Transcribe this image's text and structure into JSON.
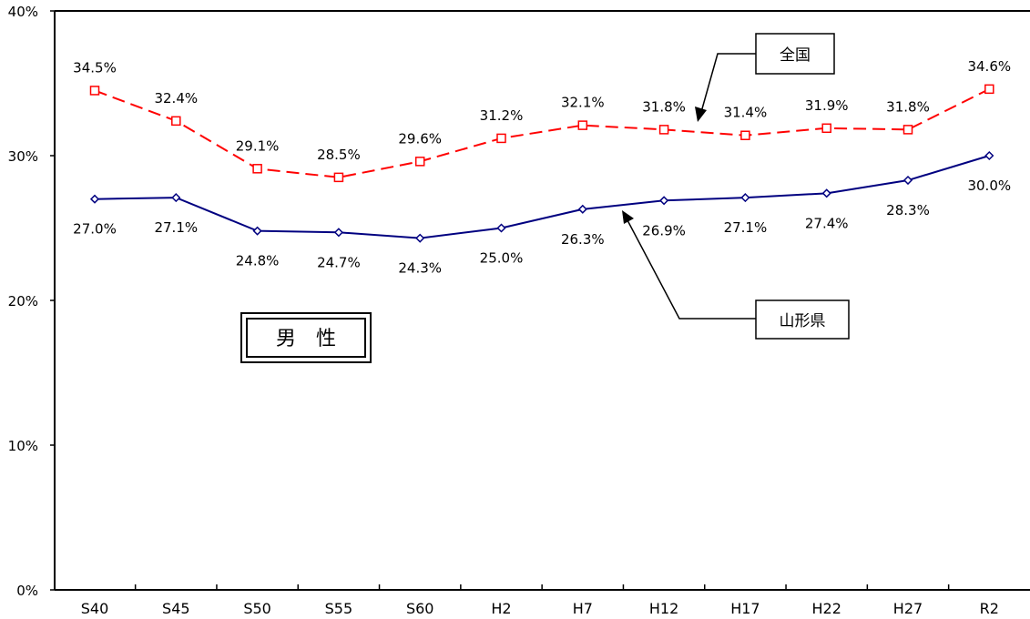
{
  "chart_data": {
    "type": "line",
    "categories": [
      "S40",
      "S45",
      "S50",
      "S55",
      "S60",
      "H2",
      "H7",
      "H12",
      "H17",
      "H22",
      "H27",
      "R2"
    ],
    "y_ticks": [
      "0%",
      "10%",
      "20%",
      "30%",
      "40%"
    ],
    "ylim": [
      0,
      40
    ],
    "grid": false,
    "series": [
      {
        "name": "全国",
        "values": [
          34.5,
          32.4,
          29.1,
          28.5,
          29.6,
          31.2,
          32.1,
          31.8,
          31.4,
          31.9,
          31.8,
          34.6
        ],
        "labels": [
          "34.5%",
          "32.4%",
          "29.1%",
          "28.5%",
          "29.6%",
          "31.2%",
          "32.1%",
          "31.8%",
          "31.4%",
          "31.9%",
          "31.8%",
          "34.6%"
        ],
        "color": "#ff0000",
        "line_style": "dashed",
        "marker": "square"
      },
      {
        "name": "山形県",
        "values": [
          27.0,
          27.1,
          24.8,
          24.7,
          24.3,
          25.0,
          26.3,
          26.9,
          27.1,
          27.4,
          28.3,
          30.0
        ],
        "labels": [
          "27.0%",
          "27.1%",
          "24.8%",
          "24.7%",
          "24.3%",
          "25.0%",
          "26.3%",
          "26.9%",
          "27.1%",
          "27.4%",
          "28.3%",
          "30.0%"
        ],
        "color": "#000080",
        "line_style": "solid",
        "marker": "diamond"
      }
    ],
    "annotations": {
      "title_box": "男　性",
      "national_callout": "全国",
      "yamagata_callout": "山形県"
    }
  }
}
